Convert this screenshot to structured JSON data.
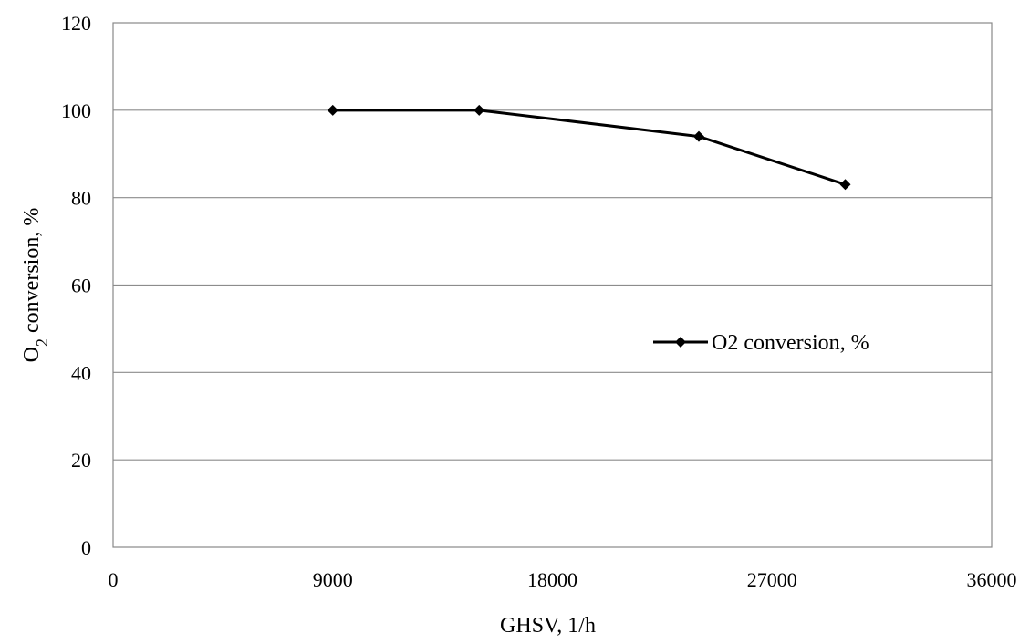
{
  "chart_data": {
    "type": "line",
    "xlabel": "GHSV, 1/h",
    "ylabel": {
      "main": "O",
      "subscript": "2",
      "rest": " conversion, %"
    },
    "xlim": [
      0,
      36000
    ],
    "ylim": [
      0,
      120
    ],
    "x_ticks": [
      "0",
      "9000",
      "18000",
      "27000",
      "36000"
    ],
    "y_ticks": [
      "0",
      "20",
      "40",
      "60",
      "80",
      "100",
      "120"
    ],
    "grid": {
      "horizontal": true,
      "vertical": false
    },
    "legend_position": "center-right",
    "series": [
      {
        "name": "O2 conversion, %",
        "color": "#000000",
        "marker": "diamond",
        "points": [
          {
            "x": 9000,
            "y": 100
          },
          {
            "x": 15000,
            "y": 100
          },
          {
            "x": 24000,
            "y": 94
          },
          {
            "x": 30000,
            "y": 83
          }
        ]
      }
    ]
  }
}
